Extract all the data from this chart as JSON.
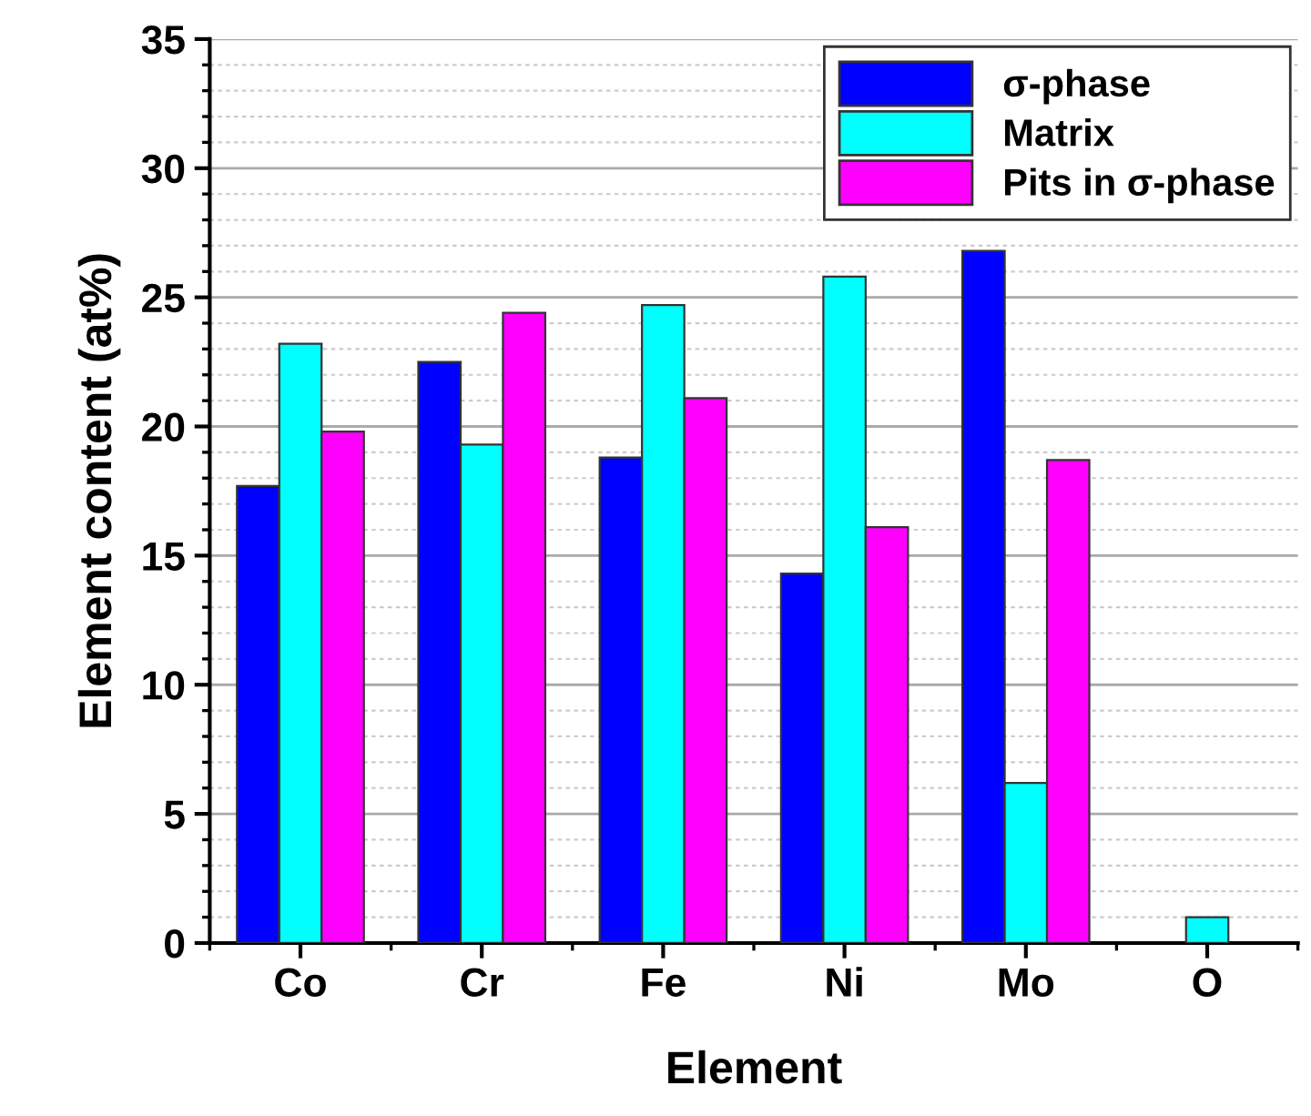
{
  "chart_data": {
    "type": "bar",
    "xlabel": "Element",
    "ylabel": "Element content (at%)",
    "categories": [
      "Co",
      "Cr",
      "Fe",
      "Ni",
      "Mo",
      "O"
    ],
    "series": [
      {
        "name": "σ-phase",
        "color": "#0000ff",
        "values": [
          17.7,
          22.5,
          18.8,
          14.3,
          26.8,
          null
        ]
      },
      {
        "name": "Matrix",
        "color": "#00ffff",
        "values": [
          23.2,
          19.3,
          24.7,
          25.8,
          6.2,
          1.0
        ]
      },
      {
        "name": "Pits in σ-phase",
        "color": "#ff00ff",
        "values": [
          19.8,
          24.4,
          21.1,
          16.1,
          18.7,
          null
        ]
      }
    ],
    "ylim": [
      0,
      35
    ],
    "yticks": [
      0,
      5,
      10,
      15,
      20,
      25,
      30,
      35
    ],
    "grid": "y",
    "legend": "top right"
  }
}
